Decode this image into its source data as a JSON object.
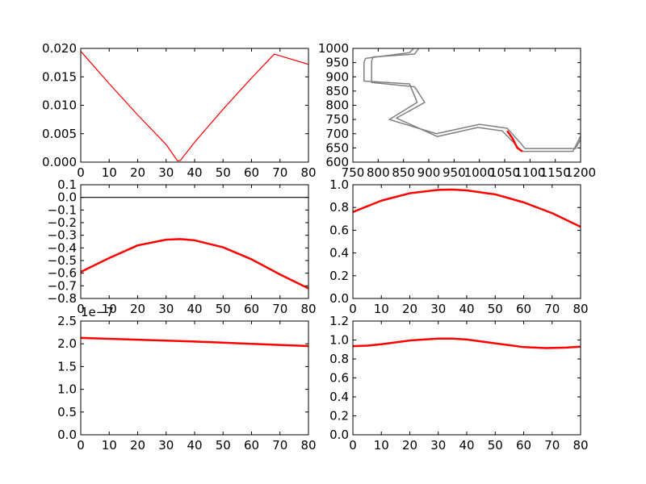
{
  "chart_data": [
    {
      "type": "line",
      "title": "",
      "xlabel": "",
      "ylabel": "",
      "xlim": [
        0,
        80
      ],
      "ylim": [
        0.0,
        0.02
      ],
      "xticks": [
        "0",
        "10",
        "20",
        "30",
        "40",
        "50",
        "60",
        "70",
        "80"
      ],
      "yticks": [
        "0.000",
        "0.005",
        "0.010",
        "0.015",
        "0.020"
      ],
      "grid": false,
      "series": [
        {
          "color": "#ff0000",
          "stroke_width": 1.2,
          "x": [
            0,
            10,
            20,
            30,
            34,
            35,
            40,
            50,
            60,
            68,
            80
          ],
          "y": [
            0.0195,
            0.0138,
            0.0083,
            0.0031,
            0.0002,
            0.0003,
            0.0035,
            0.0093,
            0.0148,
            0.019,
            0.0172
          ]
        }
      ]
    },
    {
      "type": "line",
      "title": "",
      "xlabel": "",
      "ylabel": "",
      "xlim": [
        750,
        1200
      ],
      "ylim": [
        600,
        1000
      ],
      "xticks": [
        "750",
        "800",
        "850",
        "900",
        "950",
        "1000",
        "1050",
        "1100",
        "1150",
        "1200"
      ],
      "yticks": [
        "600",
        "650",
        "700",
        "750",
        "800",
        "850",
        "900",
        "950",
        "1000"
      ],
      "grid": false,
      "series": [
        {
          "color": "#808080",
          "stroke_width": 1.5,
          "x": [
            870,
            862,
            775,
            772,
            772,
            862,
            877,
            822,
            915,
            1000,
            1055,
            1080,
            1090,
            1190,
            1200
          ],
          "y": [
            1000,
            985,
            965,
            950,
            885,
            875,
            810,
            750,
            700,
            733,
            719,
            670,
            648,
            648,
            680
          ]
        },
        {
          "color": "#808080",
          "stroke_width": 1.5,
          "x": [
            880,
            872,
            790,
            787,
            787,
            872,
            892,
            836,
            917,
            997,
            1045,
            1070,
            1082,
            1185,
            1200
          ],
          "y": [
            1000,
            980,
            970,
            955,
            880,
            865,
            810,
            755,
            690,
            722,
            710,
            665,
            638,
            638,
            692
          ]
        },
        {
          "color": "#ff0000",
          "stroke_width": 2.5,
          "x": [
            1055,
            1065,
            1075,
            1085
          ],
          "y": [
            710,
            685,
            650,
            638
          ]
        }
      ]
    },
    {
      "type": "line",
      "title": "",
      "xlabel": "",
      "ylabel": "",
      "xlim": [
        0,
        80
      ],
      "ylim": [
        -0.8,
        0.1
      ],
      "xticks": [
        "0",
        "10",
        "20",
        "30",
        "40",
        "50",
        "60",
        "70",
        "80"
      ],
      "yticks": [
        "0.1",
        "0.0",
        "−0.1",
        "−0.2",
        "−0.3",
        "−0.4",
        "−0.5",
        "−0.6",
        "−0.7",
        "−0.8"
      ],
      "grid": false,
      "series": [
        {
          "color": "#000000",
          "stroke_width": 1.2,
          "x": [
            0,
            80
          ],
          "y": [
            0.0,
            0.0
          ]
        },
        {
          "color": "#ff0000",
          "stroke_width": 2.5,
          "x": [
            0,
            10,
            20,
            30,
            35,
            40,
            50,
            60,
            70,
            80
          ],
          "y": [
            -0.59,
            -0.48,
            -0.38,
            -0.335,
            -0.33,
            -0.34,
            -0.395,
            -0.49,
            -0.61,
            -0.72
          ]
        }
      ]
    },
    {
      "type": "line",
      "title": "",
      "xlabel": "",
      "ylabel": "",
      "xlim": [
        0,
        80
      ],
      "ylim": [
        0.0,
        1.0
      ],
      "xticks": [
        "0",
        "10",
        "20",
        "30",
        "40",
        "50",
        "60",
        "70",
        "80"
      ],
      "yticks": [
        "0.0",
        "0.2",
        "0.4",
        "0.6",
        "0.8",
        "1.0"
      ],
      "grid": false,
      "series": [
        {
          "color": "#ff0000",
          "stroke_width": 2.5,
          "x": [
            0,
            10,
            20,
            30,
            35,
            40,
            50,
            60,
            70,
            80
          ],
          "y": [
            0.76,
            0.86,
            0.925,
            0.955,
            0.957,
            0.95,
            0.915,
            0.845,
            0.75,
            0.63
          ]
        }
      ]
    },
    {
      "type": "line",
      "title": "",
      "xlabel": "",
      "ylabel": "",
      "xlim": [
        0,
        80
      ],
      "ylim": [
        0.0,
        2.5
      ],
      "offset_text": "1e−7",
      "xticks": [
        "0",
        "10",
        "20",
        "30",
        "40",
        "50",
        "60",
        "70",
        "80"
      ],
      "yticks": [
        "0.0",
        "0.5",
        "1.0",
        "1.5",
        "2.0",
        "2.5"
      ],
      "grid": false,
      "series": [
        {
          "color": "#ff0000",
          "stroke_width": 2.5,
          "x": [
            0,
            20,
            40,
            60,
            80
          ],
          "y": [
            2.13,
            2.09,
            2.05,
            2.0,
            1.95
          ]
        }
      ]
    },
    {
      "type": "line",
      "title": "",
      "xlabel": "",
      "ylabel": "",
      "xlim": [
        0,
        80
      ],
      "ylim": [
        0.0,
        1.2
      ],
      "xticks": [
        "0",
        "10",
        "20",
        "30",
        "40",
        "50",
        "60",
        "70",
        "80"
      ],
      "yticks": [
        "0.0",
        "0.2",
        "0.4",
        "0.6",
        "0.8",
        "1.0",
        "1.2"
      ],
      "grid": false,
      "series": [
        {
          "color": "#ff0000",
          "stroke_width": 2.5,
          "x": [
            0,
            5,
            10,
            20,
            30,
            35,
            40,
            50,
            60,
            68,
            75,
            80
          ],
          "y": [
            0.935,
            0.94,
            0.955,
            0.995,
            1.015,
            1.015,
            1.005,
            0.965,
            0.925,
            0.915,
            0.92,
            0.93
          ]
        }
      ]
    }
  ]
}
